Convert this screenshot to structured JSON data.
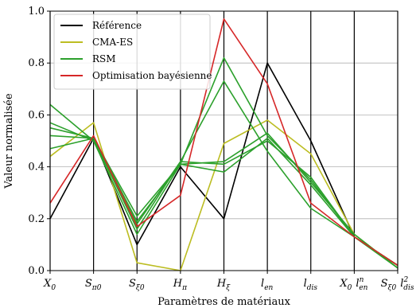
{
  "chart_data": {
    "type": "line",
    "subtype": "parallel-coordinates",
    "xlabel": "Paramètres de matériaux",
    "ylabel": "Valeur normalisée",
    "ylim": [
      0.0,
      1.0
    ],
    "yticks": [
      "0.0",
      "0.2",
      "0.4",
      "0.6",
      "0.8",
      "1.0"
    ],
    "ytick_values": [
      0.0,
      0.2,
      0.4,
      0.6,
      0.8,
      1.0
    ],
    "grid": "horizontal",
    "legend_position": "top-left",
    "categories": [
      {
        "base": "X",
        "sub": "0",
        "sup": ""
      },
      {
        "base": "S",
        "sub": "π0",
        "sup": ""
      },
      {
        "base": "S",
        "sub": "ξ0",
        "sup": ""
      },
      {
        "base": "H",
        "sub": "π",
        "sup": ""
      },
      {
        "base": "H",
        "sub": "ξ",
        "sup": ""
      },
      {
        "base": "l",
        "sub": "en",
        "sup": ""
      },
      {
        "base": "l",
        "sub": "dis",
        "sup": ""
      },
      {
        "base": "X",
        "sub": "0",
        "sup": "",
        "extra": {
          "base": "l",
          "sub": "en",
          "sup": "n"
        }
      },
      {
        "base": "S",
        "sub": "ξ0",
        "sup": "",
        "extra": {
          "base": "l",
          "sub": "dis",
          "sup": "2"
        }
      }
    ],
    "series": [
      {
        "name": "Référence",
        "color": "#000000",
        "values": [
          0.2,
          0.51,
          0.1,
          0.4,
          0.2,
          0.8,
          0.5,
          0.13,
          0.02
        ]
      },
      {
        "name": "CMA-ES",
        "color": "#bcbd22",
        "values": [
          0.44,
          0.57,
          0.03,
          0.0,
          0.49,
          0.58,
          0.45,
          0.14,
          0.01
        ]
      },
      {
        "name": "RSM",
        "color": "#2ca02c",
        "values": [
          0.64,
          0.5,
          0.14,
          0.41,
          0.38,
          0.51,
          0.33,
          0.13,
          0.02
        ]
      },
      {
        "name": "",
        "color": "#2ca02c",
        "values": [
          0.57,
          0.5,
          0.18,
          0.42,
          0.73,
          0.46,
          0.24,
          0.13,
          0.01
        ]
      },
      {
        "name": "",
        "color": "#2ca02c",
        "values": [
          0.55,
          0.51,
          0.21,
          0.41,
          0.82,
          0.52,
          0.35,
          0.13,
          0.02
        ]
      },
      {
        "name": "",
        "color": "#2ca02c",
        "values": [
          0.52,
          0.51,
          0.16,
          0.42,
          0.41,
          0.5,
          0.36,
          0.13,
          0.02
        ]
      },
      {
        "name": "",
        "color": "#2ca02c",
        "values": [
          0.47,
          0.51,
          0.19,
          0.41,
          0.42,
          0.53,
          0.34,
          0.14,
          0.01
        ]
      },
      {
        "name": "Optimisation bayésienne",
        "color": "#d62728",
        "values": [
          0.26,
          0.52,
          0.17,
          0.29,
          0.97,
          0.72,
          0.26,
          0.13,
          0.02
        ]
      }
    ]
  }
}
